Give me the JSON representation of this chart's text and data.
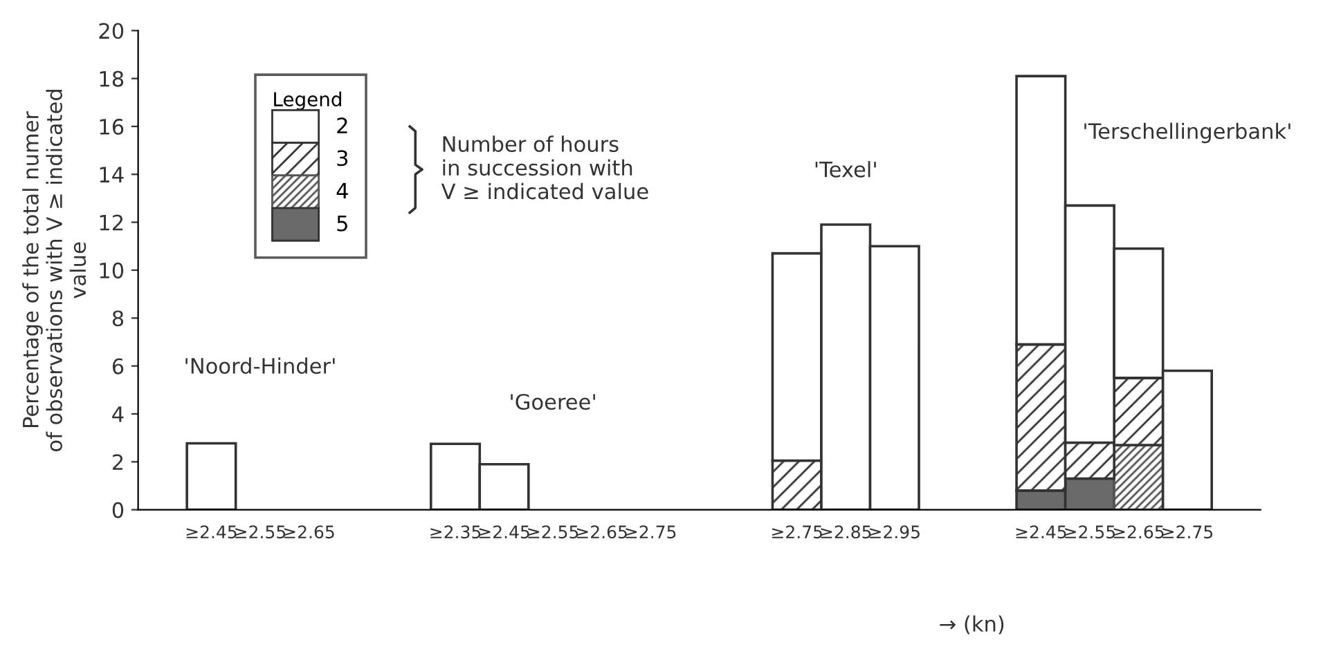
{
  "chart_data": {
    "type": "bar",
    "stacked": true,
    "ylabel": "Percentage of the total numer\nof observations with V ≥ indicated\nvalue",
    "xlabel": "→ (kn)",
    "legend_title": "Legend",
    "legend": "top left",
    "grid": false,
    "categories": [
      null,
      "≥2.45",
      "≥2.55",
      "≥2.65",
      null,
      null,
      "≥2.35",
      "≥2.45",
      "≥2.55",
      "≥2.65",
      "≥2.75",
      null,
      null,
      "≥2.75",
      "≥2.85",
      "≥2.95",
      null,
      null,
      "≥2.45",
      "≥2.55",
      "≥2.65",
      "≥2.75",
      null
    ],
    "series": [
      {
        "name": "5",
        "color": "#6a6a6a",
        "values": [
          null,
          0,
          0,
          0,
          null,
          null,
          0,
          0,
          0,
          0,
          0,
          null,
          null,
          0,
          0,
          0,
          null,
          null,
          0.8,
          1.3,
          0,
          0,
          null
        ]
      },
      {
        "name": "4",
        "color": "#555555",
        "values": [
          null,
          0,
          0,
          0,
          null,
          null,
          0,
          0,
          0,
          0,
          0,
          null,
          null,
          0,
          0,
          0,
          null,
          null,
          0,
          0,
          2.7,
          0,
          null
        ]
      },
      {
        "name": "3",
        "color": "#333333",
        "values": [
          null,
          0,
          0,
          0,
          null,
          null,
          0,
          0,
          0,
          0,
          0,
          null,
          null,
          2.05,
          0,
          0,
          null,
          null,
          6.1,
          1.5,
          2.8,
          0,
          null
        ]
      },
      {
        "name": "2",
        "color": "#ffffff",
        "values": [
          null,
          2.77,
          0,
          0,
          null,
          null,
          2.75,
          1.9,
          0,
          0,
          0,
          null,
          null,
          8.65,
          11.9,
          11.0,
          null,
          null,
          11.2,
          9.9,
          5.4,
          5.8,
          null
        ]
      }
    ],
    "ylim": [
      0,
      20
    ],
    "yticks": [
      0,
      2,
      4,
      6,
      8,
      10,
      12,
      14,
      16,
      18,
      20
    ],
    "annotations": [
      "Number of hours\nin succession with\nV ≥ indicated value",
      "'Noord-Hinder'",
      "'Goeree'",
      "'Texel'",
      "'Terschellingerbank'"
    ]
  }
}
